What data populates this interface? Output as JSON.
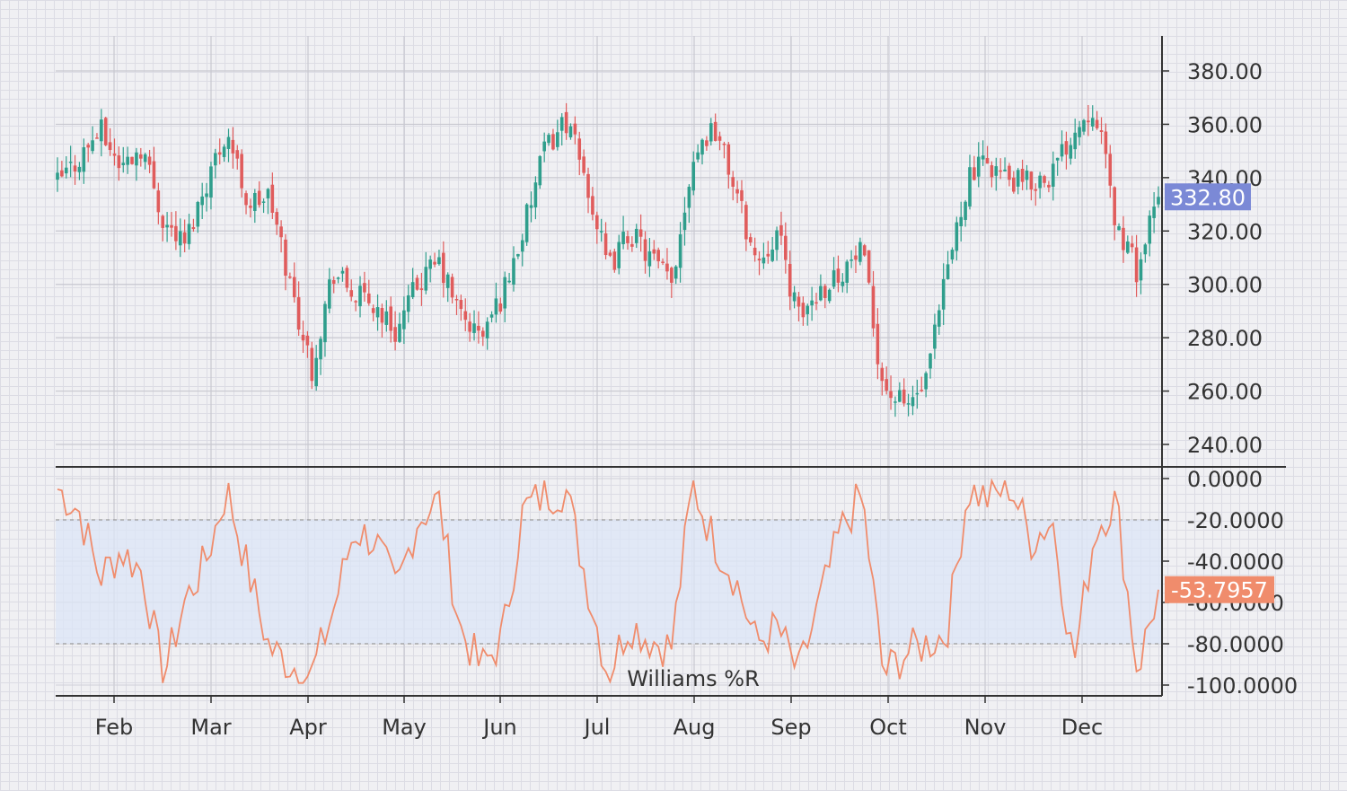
{
  "chart_data": [
    {
      "type": "candlestick",
      "title": "",
      "ylim": [
        232,
        395
      ],
      "y_ticks": [
        "380.00",
        "360.00",
        "340.00",
        "320.00",
        "300.00",
        "280.00",
        "260.00",
        "240.00"
      ],
      "x_ticks": [
        "Feb",
        "Mar",
        "Apr",
        "May",
        "Jun",
        "Jul",
        "Aug",
        "Sep",
        "Oct",
        "Nov",
        "Dec"
      ],
      "last_price": "332.80",
      "grid": true,
      "colors": {
        "up": "#2f9e8c",
        "down": "#e05c5c",
        "badge": "#7b89d6"
      },
      "x_points": [
        [
          "Jan 3",
          338
        ],
        [
          "Jan 10",
          347
        ],
        [
          "Jan 17",
          358
        ],
        [
          "Jan 24",
          344
        ],
        [
          "Jan 31",
          352
        ],
        [
          "Feb 7",
          324
        ],
        [
          "Feb 14",
          315
        ],
        [
          "Feb 21",
          338
        ],
        [
          "Feb 28",
          358
        ],
        [
          "Mar 7",
          330
        ],
        [
          "Mar 14",
          333
        ],
        [
          "Mar 21",
          300
        ],
        [
          "Mar 28",
          268
        ],
        [
          "Apr 4",
          305
        ],
        [
          "Apr 11",
          296
        ],
        [
          "Apr 18",
          292
        ],
        [
          "Apr 25",
          282
        ],
        [
          "May 2",
          300
        ],
        [
          "May 9",
          308
        ],
        [
          "May 16",
          289
        ],
        [
          "May 23",
          280
        ],
        [
          "May 30",
          296
        ],
        [
          "Jun 6",
          320
        ],
        [
          "Jun 13",
          350
        ],
        [
          "Jun 20",
          362
        ],
        [
          "Jun 27",
          338
        ],
        [
          "Jul 4",
          305
        ],
        [
          "Jul 11",
          320
        ],
        [
          "Jul 18",
          310
        ],
        [
          "Jul 25",
          300
        ],
        [
          "Aug 1",
          348
        ],
        [
          "Aug 8",
          360
        ],
        [
          "Aug 15",
          336
        ],
        [
          "Aug 22",
          308
        ],
        [
          "Aug 29",
          320
        ],
        [
          "Sep 5",
          287
        ],
        [
          "Sep 12",
          298
        ],
        [
          "Sep 19",
          305
        ],
        [
          "Sep 26",
          312
        ],
        [
          "Oct 3",
          262
        ],
        [
          "Oct 10",
          254
        ],
        [
          "Oct 17",
          262
        ],
        [
          "Oct 24",
          304
        ],
        [
          "Oct 31",
          340
        ],
        [
          "Nov 7",
          346
        ],
        [
          "Nov 14",
          338
        ],
        [
          "Nov 21",
          338
        ],
        [
          "Nov 28",
          342
        ],
        [
          "Dec 5",
          358
        ],
        [
          "Dec 12",
          368
        ],
        [
          "Dec 19",
          322
        ],
        [
          "Dec 26",
          305
        ],
        [
          "Dec 30",
          332.8
        ]
      ]
    },
    {
      "type": "line",
      "xlabel": "Williams %R",
      "ylim": [
        -100,
        0
      ],
      "y_ticks": [
        "0.0000",
        "-20.0000",
        "-40.0000",
        "-60.0000",
        "-80.0000",
        "-100.0000"
      ],
      "last_value": "-53.7957",
      "band": [
        -80,
        -20
      ],
      "colors": {
        "line": "#f08c6c",
        "badge": "#f08c6c",
        "band": "#dce6f7"
      },
      "x_points": [
        [
          "Jan 3",
          -5
        ],
        [
          "Jan 10",
          -15
        ],
        [
          "Jan 17",
          -48
        ],
        [
          "Jan 24",
          -35
        ],
        [
          "Jan 31",
          -45
        ],
        [
          "Feb 7",
          -96
        ],
        [
          "Feb 14",
          -60
        ],
        [
          "Feb 21",
          -40
        ],
        [
          "Feb 28",
          -5
        ],
        [
          "Mar 7",
          -45
        ],
        [
          "Mar 14",
          -82
        ],
        [
          "Mar 21",
          -90
        ],
        [
          "Mar 28",
          -95
        ],
        [
          "Apr 4",
          -65
        ],
        [
          "Apr 11",
          -25
        ],
        [
          "Apr 18",
          -30
        ],
        [
          "Apr 25",
          -55
        ],
        [
          "May 2",
          -20
        ],
        [
          "May 9",
          -10
        ],
        [
          "May 16",
          -72
        ],
        [
          "May 23",
          -92
        ],
        [
          "May 30",
          -78
        ],
        [
          "Jun 6",
          -15
        ],
        [
          "Jun 13",
          -8
        ],
        [
          "Jun 20",
          -5
        ],
        [
          "Jun 27",
          -50
        ],
        [
          "Jul 4",
          -95
        ],
        [
          "Jul 11",
          -70
        ],
        [
          "Jul 18",
          -78
        ],
        [
          "Jul 25",
          -82
        ],
        [
          "Aug 1",
          -3
        ],
        [
          "Aug 8",
          -30
        ],
        [
          "Aug 15",
          -48
        ],
        [
          "Aug 22",
          -80
        ],
        [
          "Aug 29",
          -72
        ],
        [
          "Sep 5",
          -95
        ],
        [
          "Sep 12",
          -60
        ],
        [
          "Sep 19",
          -25
        ],
        [
          "Sep 26",
          -8
        ],
        [
          "Oct 3",
          -95
        ],
        [
          "Oct 10",
          -85
        ],
        [
          "Oct 17",
          -80
        ],
        [
          "Oct 24",
          -75
        ],
        [
          "Oct 31",
          -5
        ],
        [
          "Nov 7",
          -10
        ],
        [
          "Nov 14",
          -3
        ],
        [
          "Nov 21",
          -30
        ],
        [
          "Nov 28",
          -20
        ],
        [
          "Dec 5",
          -90
        ],
        [
          "Dec 12",
          -25
        ],
        [
          "Dec 19",
          -10
        ],
        [
          "Dec 26",
          -93
        ],
        [
          "Dec 30",
          -53.7957
        ]
      ]
    }
  ]
}
